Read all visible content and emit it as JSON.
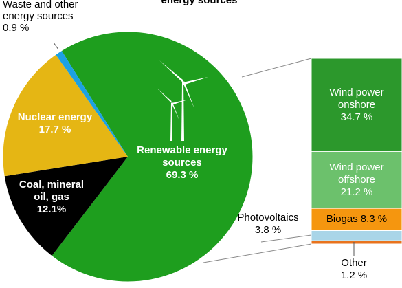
{
  "chart_data": [
    {
      "type": "pie",
      "title": "energy sources",
      "categories": [
        "Renewable energy sources",
        "Coal, mineral oil, gas",
        "Nuclear energy",
        "Waste and other energy sources"
      ],
      "values": [
        69.3,
        12.1,
        17.7,
        0.9
      ],
      "value_labels": [
        "69.3 %",
        "12.1%",
        "17.7 %",
        "0.9 %"
      ],
      "colors": [
        "#1e9e1e",
        "#000000",
        "#e5b614",
        "#1da1e2"
      ]
    },
    {
      "type": "bar",
      "categories": [
        "Wind power onshore",
        "Wind power offshore",
        "Biogas",
        "Photovoltaics",
        "Other"
      ],
      "values": [
        34.7,
        21.2,
        8.3,
        3.8,
        1.2
      ],
      "value_labels": [
        "34.7 %",
        "21.2 %",
        "8.3 %",
        "3.8 %",
        "1.2 %"
      ],
      "colors": [
        "#2c982c",
        "#6cc16c",
        "#f5960f",
        "#a9d5e8",
        "#e8731e"
      ]
    }
  ]
}
